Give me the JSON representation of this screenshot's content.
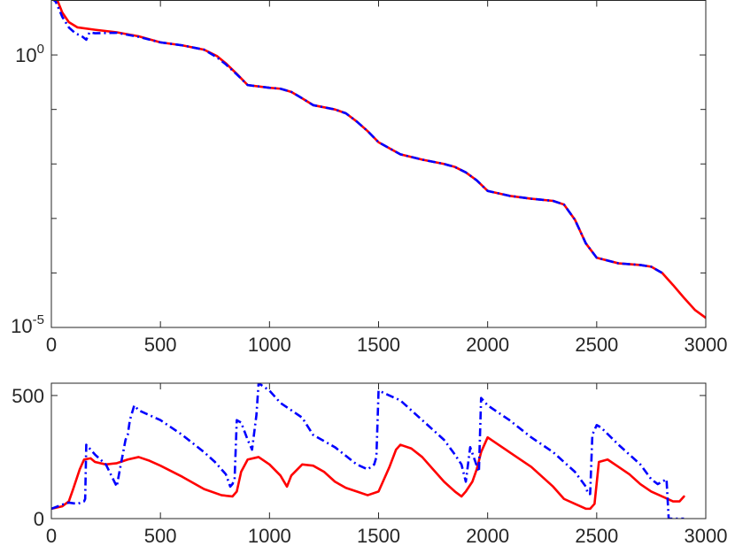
{
  "chart_data": [
    {
      "type": "line",
      "title": "",
      "xlabel": "",
      "ylabel": "",
      "yscale": "log",
      "xlim": [
        0,
        3000
      ],
      "ylim": [
        1e-05,
        10
      ],
      "grid": false,
      "legend": "none",
      "x_ticks": [
        0,
        500,
        1000,
        1500,
        2000,
        2500,
        3000
      ],
      "x_tick_labels": [
        "0",
        "500",
        "1000",
        "1500",
        "2000",
        "2500",
        "3000"
      ],
      "y_ticks": [
        1e-05,
        1
      ],
      "y_tick_labels": [
        {
          "base": "10",
          "exp": "-5"
        },
        {
          "base": "10",
          "exp": "0"
        }
      ],
      "y_minor_ticks": [
        0.0001,
        0.001,
        0.01,
        0.1
      ],
      "series": [
        {
          "color": "#ff0000",
          "style": "solid",
          "x": [
            0,
            20,
            50,
            80,
            120,
            200,
            300,
            400,
            500,
            600,
            700,
            760,
            800,
            850,
            900,
            1000,
            1050,
            1100,
            1150,
            1200,
            1300,
            1350,
            1400,
            1450,
            1500,
            1600,
            1700,
            1800,
            1850,
            1900,
            1950,
            2000,
            2100,
            2200,
            2300,
            2350,
            2400,
            2450,
            2500,
            2600,
            2700,
            2750,
            2800,
            2850,
            2900,
            2950,
            3000
          ],
          "y": [
            15,
            12,
            6,
            4,
            3.2,
            2.9,
            2.6,
            2.2,
            1.7,
            1.5,
            1.25,
            0.95,
            0.7,
            0.45,
            0.28,
            0.25,
            0.24,
            0.21,
            0.16,
            0.12,
            0.1,
            0.085,
            0.06,
            0.04,
            0.025,
            0.015,
            0.012,
            0.01,
            0.0088,
            0.007,
            0.005,
            0.0032,
            0.0026,
            0.0023,
            0.0021,
            0.0018,
            0.00095,
            0.00035,
            0.00019,
            0.00015,
            0.00014,
            0.00013,
            0.0001,
            6e-05,
            3.5e-05,
            2.1e-05,
            1.5e-05
          ]
        },
        {
          "color": "#0000ff",
          "style": "dash-dot",
          "x": [
            0,
            20,
            50,
            80,
            110,
            140,
            160,
            175,
            200,
            300,
            400,
            500,
            600,
            700,
            760,
            800,
            850,
            900,
            1000,
            1050,
            1100,
            1150,
            1200,
            1300,
            1350,
            1400,
            1450,
            1500,
            1600,
            1700,
            1800,
            1850,
            1900,
            1950,
            2000,
            2100,
            2200,
            2300,
            2350,
            2400,
            2450,
            2500,
            2600,
            2700,
            2750,
            2800
          ],
          "y": [
            11,
            9.5,
            5,
            3.2,
            2.5,
            2.2,
            1.9,
            2.6,
            2.5,
            2.55,
            2.15,
            1.7,
            1.5,
            1.25,
            0.9,
            0.67,
            0.44,
            0.28,
            0.25,
            0.24,
            0.21,
            0.16,
            0.12,
            0.1,
            0.085,
            0.06,
            0.04,
            0.025,
            0.015,
            0.012,
            0.01,
            0.0088,
            0.007,
            0.005,
            0.0032,
            0.0026,
            0.0023,
            0.0021,
            0.0018,
            0.00095,
            0.00035,
            0.00019,
            0.00015,
            0.00014,
            0.00013,
            0.0001
          ]
        }
      ]
    },
    {
      "type": "line",
      "title": "",
      "xlabel": "",
      "ylabel": "",
      "xlim": [
        0,
        3000
      ],
      "ylim": [
        0,
        550
      ],
      "grid": false,
      "legend": "none",
      "x_ticks": [
        0,
        500,
        1000,
        1500,
        2000,
        2500,
        3000
      ],
      "x_tick_labels": [
        "0",
        "500",
        "1000",
        "1500",
        "2000",
        "2500",
        "3000"
      ],
      "y_ticks": [
        0,
        500
      ],
      "y_tick_labels": [
        "0",
        "500"
      ],
      "series": [
        {
          "color": "#ff0000",
          "style": "solid",
          "x": [
            0,
            50,
            80,
            100,
            130,
            150,
            180,
            200,
            250,
            300,
            350,
            400,
            450,
            500,
            600,
            700,
            780,
            830,
            850,
            870,
            900,
            950,
            1000,
            1050,
            1080,
            1100,
            1150,
            1200,
            1250,
            1300,
            1350,
            1400,
            1450,
            1500,
            1520,
            1550,
            1580,
            1600,
            1650,
            1700,
            1750,
            1800,
            1850,
            1880,
            1900,
            1930,
            1950,
            1970,
            2000,
            2050,
            2100,
            2200,
            2300,
            2350,
            2400,
            2450,
            2470,
            2490,
            2510,
            2550,
            2600,
            2650,
            2700,
            2750,
            2800,
            2850,
            2880,
            2900
          ],
          "y": [
            40,
            50,
            70,
            120,
            200,
            240,
            245,
            230,
            220,
            225,
            240,
            250,
            235,
            215,
            170,
            120,
            95,
            90,
            110,
            190,
            240,
            250,
            220,
            175,
            130,
            175,
            220,
            215,
            190,
            150,
            125,
            110,
            95,
            110,
            150,
            210,
            280,
            300,
            285,
            250,
            200,
            150,
            110,
            90,
            110,
            150,
            200,
            270,
            330,
            300,
            270,
            210,
            130,
            80,
            60,
            40,
            40,
            60,
            230,
            240,
            210,
            180,
            140,
            110,
            90,
            70,
            70,
            90
          ]
        },
        {
          "color": "#0000ff",
          "style": "dash-dot",
          "x": [
            0,
            30,
            60,
            80,
            120,
            150,
            155,
            160,
            200,
            250,
            300,
            310,
            340,
            350,
            360,
            380,
            400,
            500,
            600,
            700,
            750,
            800,
            820,
            830,
            840,
            850,
            870,
            900,
            920,
            940,
            950,
            1000,
            1050,
            1100,
            1150,
            1200,
            1300,
            1400,
            1450,
            1480,
            1490,
            1500,
            1600,
            1700,
            1800,
            1850,
            1880,
            1900,
            1920,
            1940,
            1960,
            1970,
            2000,
            2100,
            2200,
            2300,
            2400,
            2450,
            2460,
            2470,
            2480,
            2500,
            2520,
            2600,
            2700,
            2750,
            2780,
            2800,
            2820,
            2830,
            2850,
            2900
          ],
          "y": [
            40,
            50,
            60,
            65,
            60,
            70,
            80,
            300,
            260,
            220,
            130,
            180,
            320,
            340,
            400,
            460,
            440,
            400,
            340,
            270,
            230,
            180,
            130,
            140,
            160,
            400,
            390,
            320,
            280,
            420,
            550,
            520,
            470,
            440,
            410,
            340,
            290,
            220,
            200,
            220,
            250,
            520,
            480,
            400,
            320,
            260,
            220,
            150,
            290,
            240,
            190,
            490,
            460,
            400,
            330,
            270,
            190,
            130,
            100,
            100,
            340,
            380,
            370,
            300,
            220,
            160,
            140,
            150,
            160,
            0,
            0,
            0
          ]
        }
      ]
    }
  ]
}
